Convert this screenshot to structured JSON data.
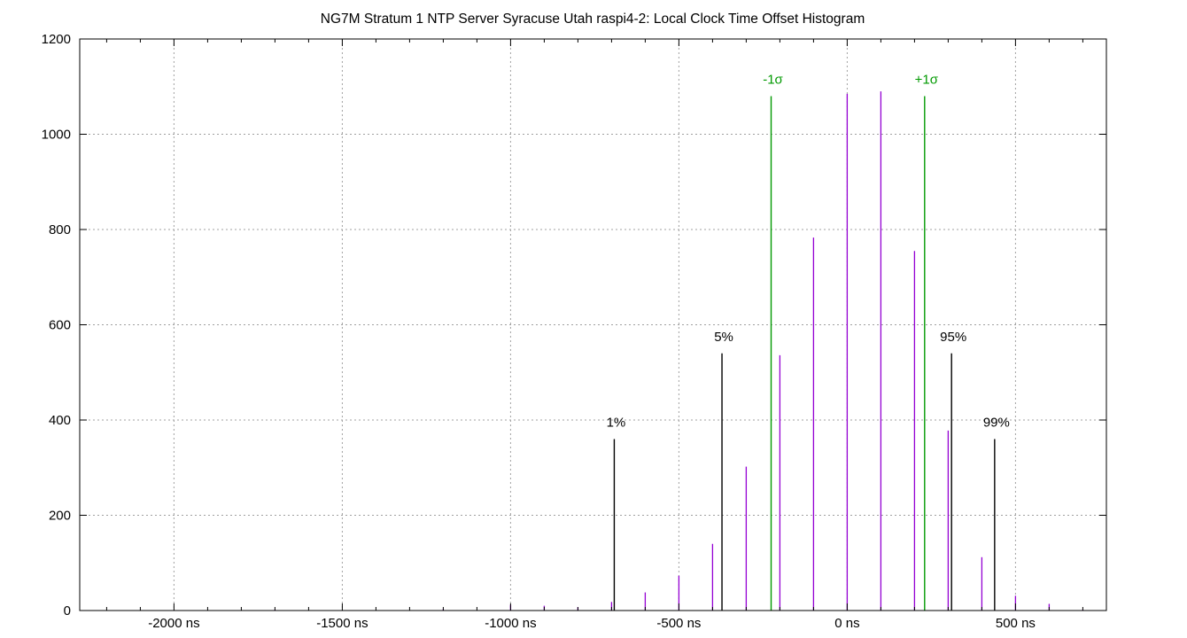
{
  "chart_data": {
    "type": "bar",
    "title": "NG7M Stratum 1 NTP Server Syracuse Utah raspi4-2: Local Clock Time Offset Histogram",
    "xlabel": "",
    "ylabel": "",
    "xlim": [
      -2280,
      770
    ],
    "ylim": [
      0,
      1200
    ],
    "x_ticks": [
      -2000,
      -1500,
      -1000,
      -500,
      0,
      500
    ],
    "x_tick_labels": [
      "-2000 ns",
      "-1500 ns",
      "-1000 ns",
      "-500 ns",
      "0 ns",
      "500 ns"
    ],
    "y_ticks": [
      0,
      200,
      400,
      600,
      800,
      1000,
      1200
    ],
    "y_tick_labels": [
      "0",
      "200",
      "400",
      "600",
      "800",
      "1000",
      "1200"
    ],
    "grid": true,
    "series": [
      {
        "color": "#9400d3",
        "x": [
          -2000,
          -1700,
          -1500,
          -1200,
          -1000,
          -900,
          -800,
          -700,
          -600,
          -500,
          -400,
          -300,
          -200,
          -100,
          0,
          100,
          200,
          300,
          400,
          500,
          600,
          700
        ],
        "values": [
          1,
          2,
          1,
          3,
          12,
          10,
          7,
          18,
          38,
          73,
          140,
          302,
          536,
          783,
          1085,
          1090,
          755,
          378,
          112,
          31,
          14,
          2
        ]
      }
    ],
    "markers": [
      {
        "label": "1%",
        "x": -692,
        "value": 360,
        "color": "#000000"
      },
      {
        "label": "5%",
        "x": -372,
        "value": 540,
        "color": "#000000"
      },
      {
        "label": "-1σ",
        "x": -226,
        "value": 1080,
        "color": "#009900"
      },
      {
        "label": "+1σ",
        "x": 230,
        "value": 1080,
        "color": "#009900"
      },
      {
        "label": "95%",
        "x": 310,
        "value": 540,
        "color": "#000000"
      },
      {
        "label": "99%",
        "x": 438,
        "value": 360,
        "color": "#000000"
      }
    ]
  }
}
